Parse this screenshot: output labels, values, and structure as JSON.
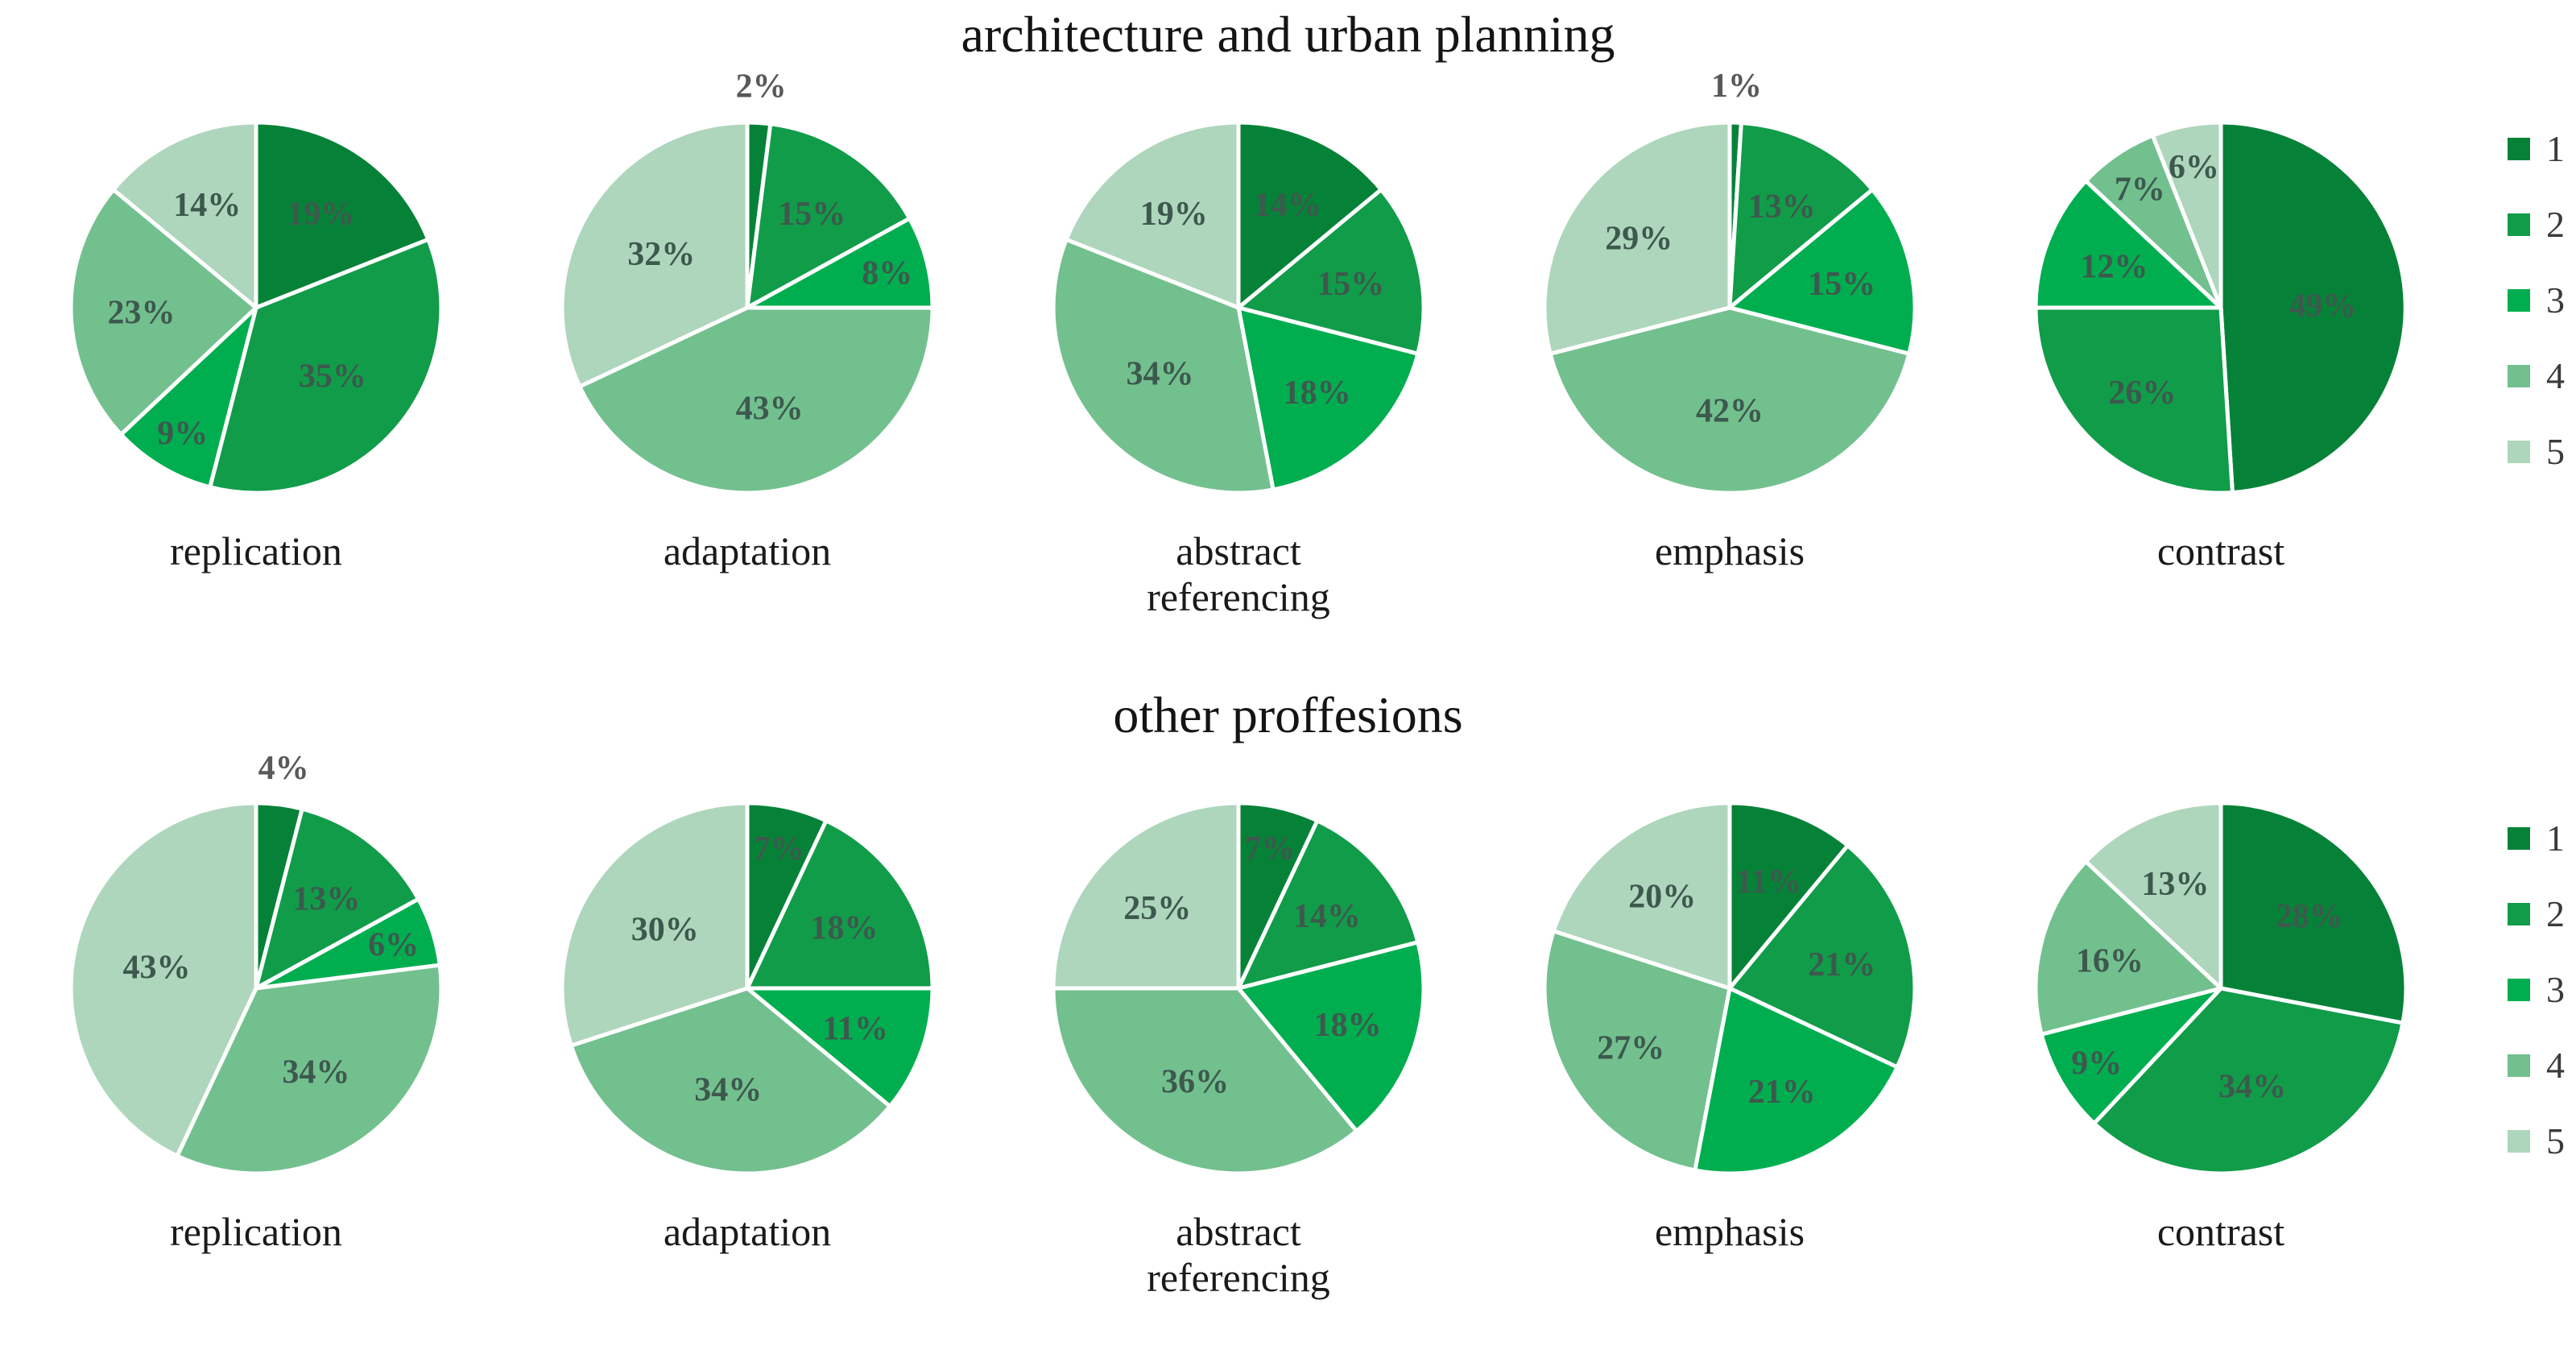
{
  "sections": [
    {
      "title": "architecture and urban planning"
    },
    {
      "title": "other proffesions"
    }
  ],
  "legend": {
    "items": [
      {
        "label": "1",
        "color": "#068238"
      },
      {
        "label": "2",
        "color": "#119c49"
      },
      {
        "label": "3",
        "color": "#00ae50"
      },
      {
        "label": "4",
        "color": "#73c08f"
      },
      {
        "label": "5",
        "color": "#aed6bc"
      }
    ]
  },
  "palette": [
    "#068238",
    "#119c49",
    "#00ae50",
    "#73c08f",
    "#aed6bc"
  ],
  "label_colors": {
    "inside": "#3d594e",
    "outside": "#595959"
  },
  "chart_data": [
    {
      "type": "pie",
      "section": "architecture and urban planning",
      "title": "replication",
      "categories": [
        "1",
        "2",
        "3",
        "4",
        "5"
      ],
      "values": [
        19,
        35,
        9,
        23,
        14
      ],
      "unit": "%"
    },
    {
      "type": "pie",
      "section": "architecture and urban planning",
      "title": "adaptation",
      "categories": [
        "1",
        "2",
        "3",
        "4",
        "5"
      ],
      "values": [
        2,
        15,
        8,
        43,
        32
      ],
      "unit": "%"
    },
    {
      "type": "pie",
      "section": "architecture and urban planning",
      "title": "abstract referencing",
      "categories": [
        "1",
        "2",
        "3",
        "4",
        "5"
      ],
      "values": [
        14,
        15,
        18,
        34,
        19
      ],
      "unit": "%"
    },
    {
      "type": "pie",
      "section": "architecture and urban planning",
      "title": "emphasis",
      "categories": [
        "1",
        "2",
        "3",
        "4",
        "5"
      ],
      "values": [
        1,
        13,
        15,
        42,
        29
      ],
      "unit": "%"
    },
    {
      "type": "pie",
      "section": "architecture and urban planning",
      "title": "contrast",
      "categories": [
        "1",
        "2",
        "3",
        "4",
        "5"
      ],
      "values": [
        49,
        26,
        12,
        7,
        6
      ],
      "unit": "%"
    },
    {
      "type": "pie",
      "section": "other proffesions",
      "title": "replication",
      "categories": [
        "1",
        "2",
        "3",
        "4",
        "5"
      ],
      "values": [
        4,
        13,
        6,
        34,
        43
      ],
      "unit": "%"
    },
    {
      "type": "pie",
      "section": "other proffesions",
      "title": "adaptation",
      "categories": [
        "1",
        "2",
        "3",
        "4",
        "5"
      ],
      "values": [
        7,
        18,
        11,
        34,
        30
      ],
      "unit": "%"
    },
    {
      "type": "pie",
      "section": "other proffesions",
      "title": "abstract referencing",
      "categories": [
        "1",
        "2",
        "3",
        "4",
        "5"
      ],
      "values": [
        7,
        14,
        18,
        36,
        25
      ],
      "unit": "%"
    },
    {
      "type": "pie",
      "section": "other proffesions",
      "title": "emphasis",
      "categories": [
        "1",
        "2",
        "3",
        "4",
        "5"
      ],
      "values": [
        11,
        21,
        21,
        27,
        20
      ],
      "unit": "%"
    },
    {
      "type": "pie",
      "section": "other proffesions",
      "title": "contrast",
      "categories": [
        "1",
        "2",
        "3",
        "4",
        "5"
      ],
      "values": [
        28,
        34,
        9,
        16,
        13
      ],
      "unit": "%"
    }
  ]
}
